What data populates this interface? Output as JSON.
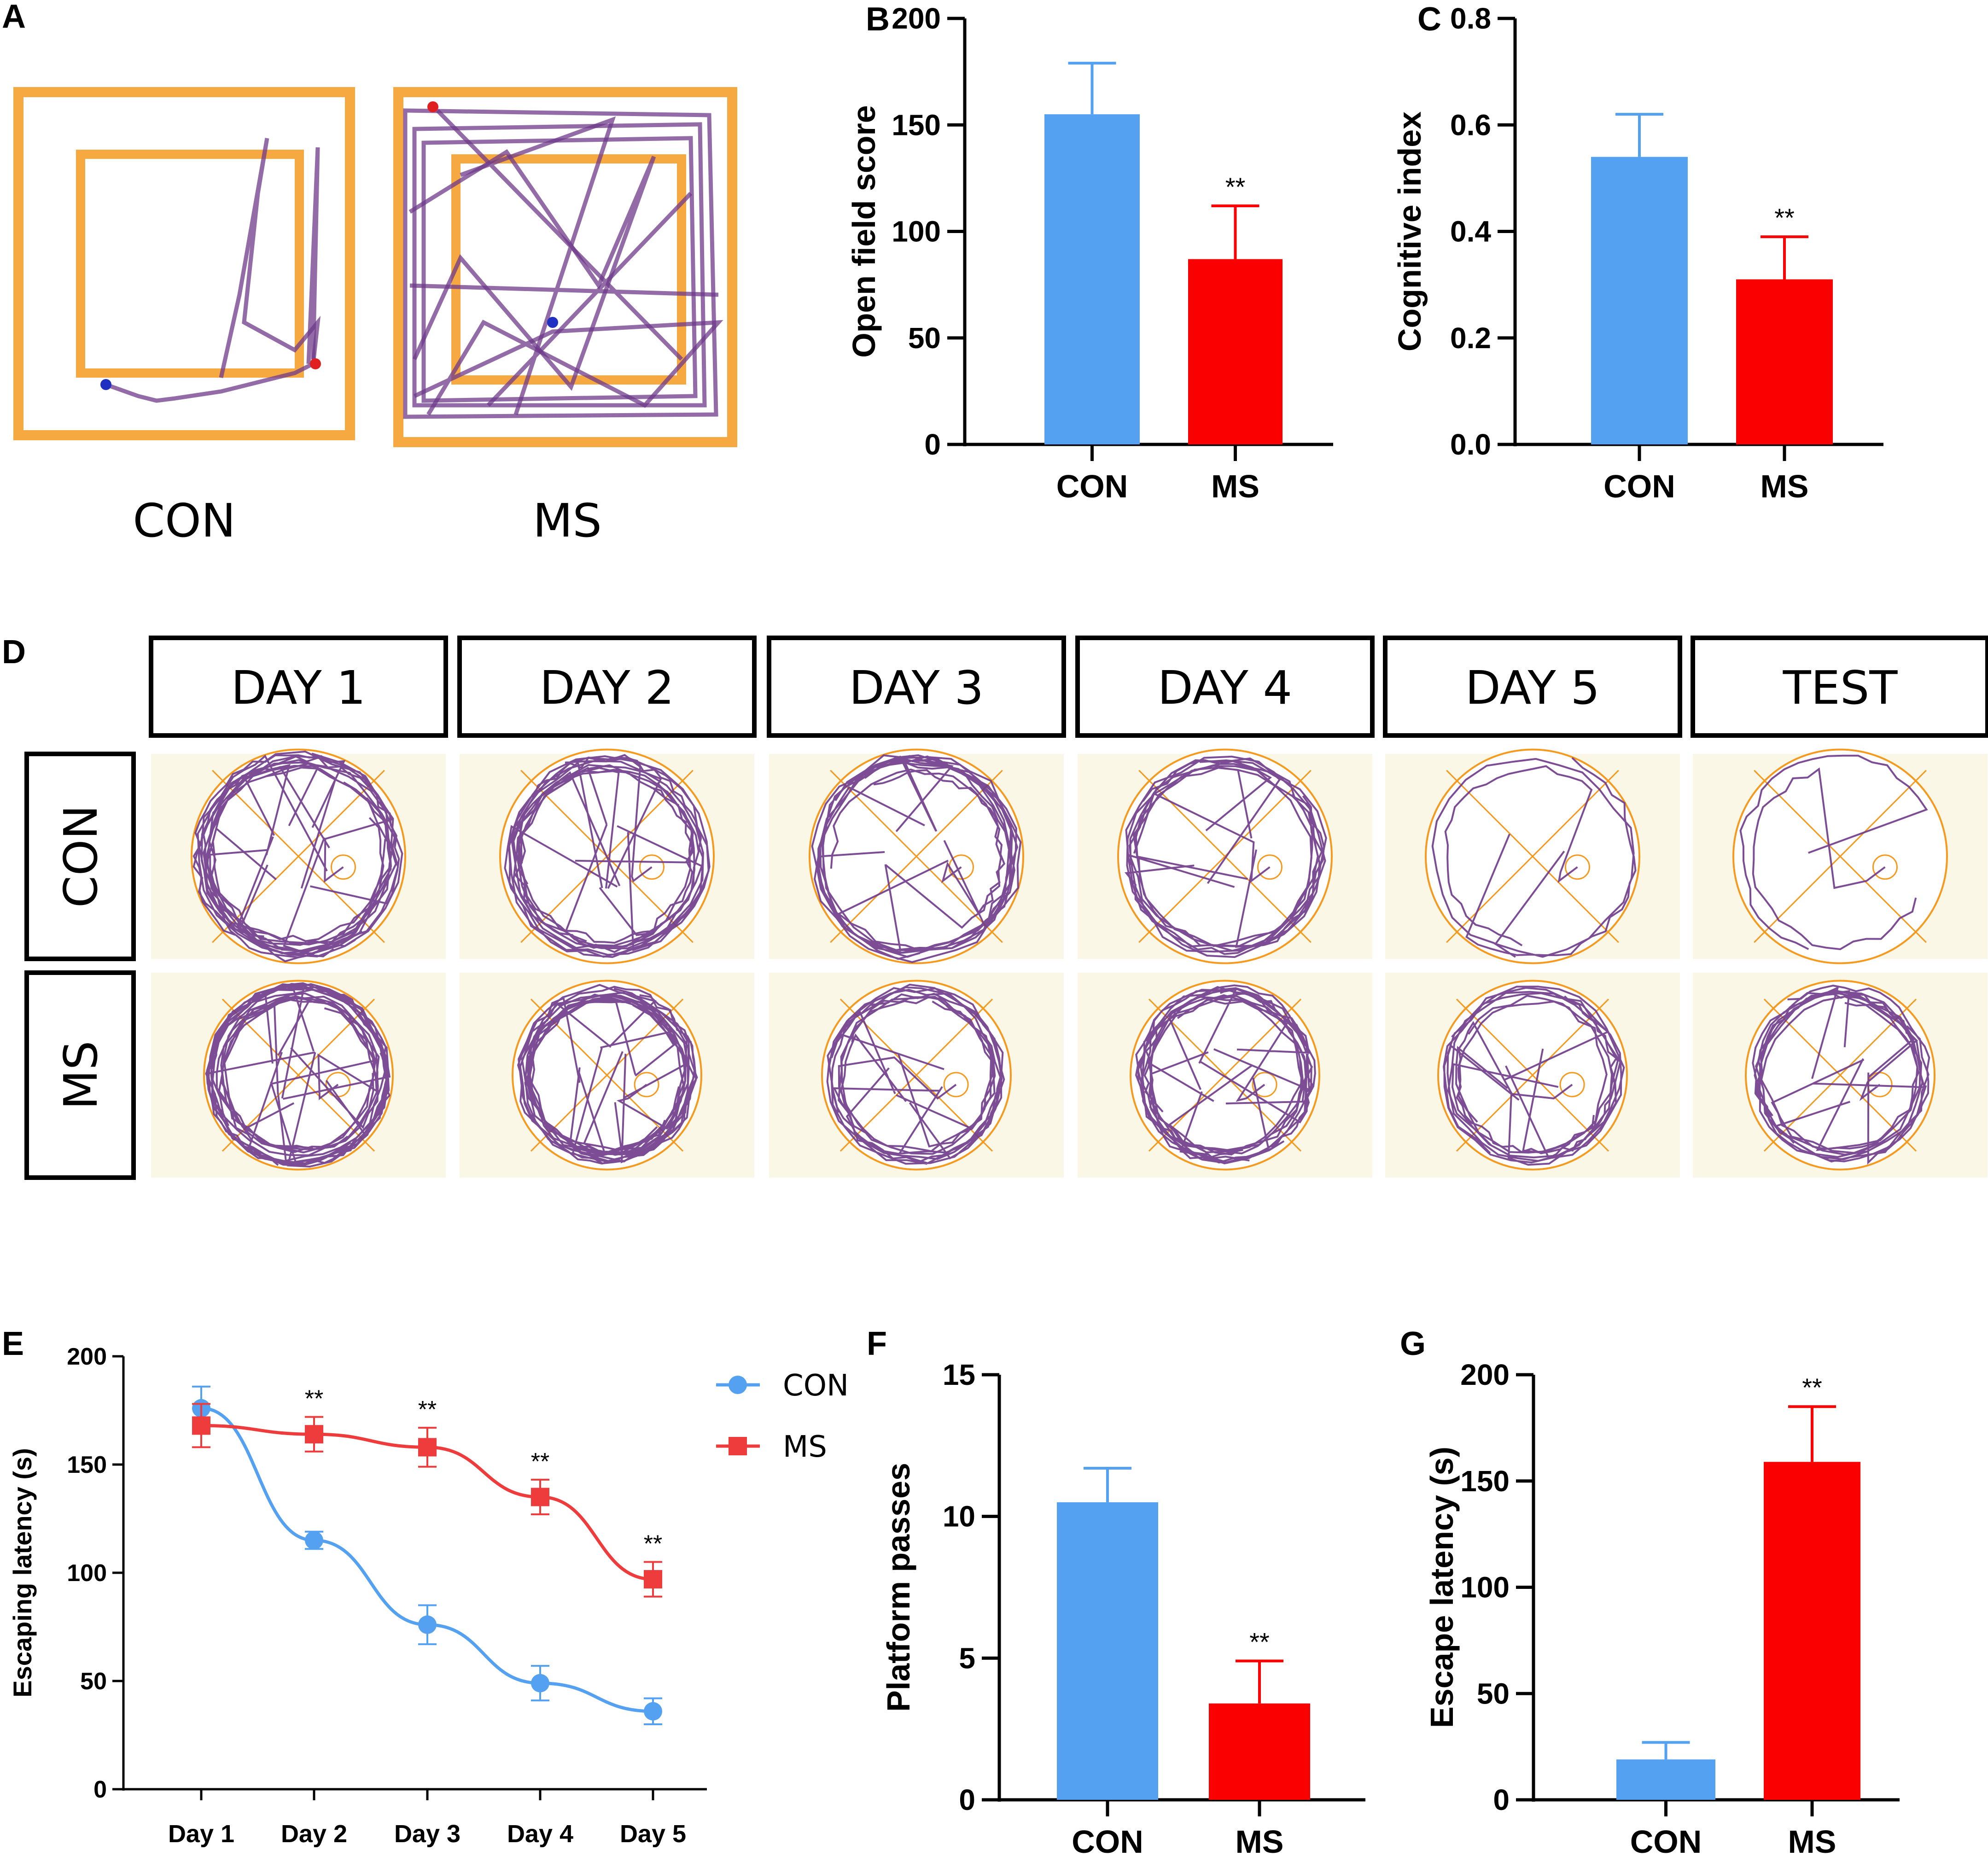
{
  "panels": {
    "a": {
      "letter": "A",
      "labels": [
        "CON",
        "MS"
      ]
    },
    "b": {
      "letter": "B"
    },
    "c": {
      "letter": "C"
    },
    "d": {
      "letter": "D",
      "columns": [
        "DAY 1",
        "DAY 2",
        "DAY 3",
        "DAY 4",
        "DAY 5",
        "TEST"
      ],
      "rows": [
        "CON",
        "MS"
      ]
    },
    "e": {
      "letter": "E"
    },
    "f": {
      "letter": "F"
    },
    "g": {
      "letter": "G"
    }
  },
  "colors": {
    "con": "#55a1f1",
    "ms": "#fa0000",
    "arena": "#f59a1e",
    "track": "#6e3a8a",
    "pool_bg": "#fbf7e6"
  },
  "chart_data": [
    {
      "id": "b",
      "type": "bar",
      "categories": [
        "CON",
        "MS"
      ],
      "values": [
        155,
        87
      ],
      "errors": [
        24,
        25
      ],
      "significance": [
        "",
        "**"
      ],
      "ylabel": "Open field score",
      "ylim": [
        0,
        200
      ],
      "yticks": [
        "0",
        "50",
        "100",
        "150",
        "200"
      ]
    },
    {
      "id": "c",
      "type": "bar",
      "categories": [
        "CON",
        "MS"
      ],
      "values": [
        0.54,
        0.31
      ],
      "errors": [
        0.08,
        0.08
      ],
      "significance": [
        "",
        "**"
      ],
      "ylabel": "Cognitive index",
      "ylim": [
        0,
        0.8
      ],
      "yticks": [
        "0.0",
        "0.2",
        "0.4",
        "0.6",
        "0.8"
      ]
    },
    {
      "id": "e",
      "type": "line",
      "categories": [
        "Day 1",
        "Day 2",
        "Day 3",
        "Day 4",
        "Day 5"
      ],
      "series": [
        {
          "name": "CON",
          "values": [
            176,
            115,
            76,
            49,
            36
          ],
          "errors": [
            10,
            4,
            9,
            8,
            6
          ]
        },
        {
          "name": "MS",
          "values": [
            168,
            164,
            158,
            135,
            97
          ],
          "errors": [
            10,
            8,
            9,
            8,
            8
          ]
        }
      ],
      "significance": [
        "",
        "**",
        "**",
        "**",
        "**"
      ],
      "ylabel": "Escaping  latency (s)",
      "ylim": [
        0,
        200
      ],
      "yticks": [
        "0",
        "50",
        "100",
        "150",
        "200"
      ]
    },
    {
      "id": "f",
      "type": "bar",
      "categories": [
        "CON",
        "MS"
      ],
      "values": [
        10.5,
        3.4
      ],
      "errors": [
        1.2,
        1.5
      ],
      "significance": [
        "",
        "**"
      ],
      "ylabel": "Platform passes",
      "ylim": [
        0,
        15
      ],
      "yticks": [
        "0",
        "5",
        "10",
        "15"
      ]
    },
    {
      "id": "g",
      "type": "bar",
      "categories": [
        "CON",
        "MS"
      ],
      "values": [
        19,
        159
      ],
      "errors": [
        8,
        26
      ],
      "significance": [
        "",
        "**"
      ],
      "ylabel": "Escape latency (s)",
      "ylim": [
        0,
        200
      ],
      "yticks": [
        "0",
        "50",
        "100",
        "150",
        "200"
      ]
    }
  ]
}
